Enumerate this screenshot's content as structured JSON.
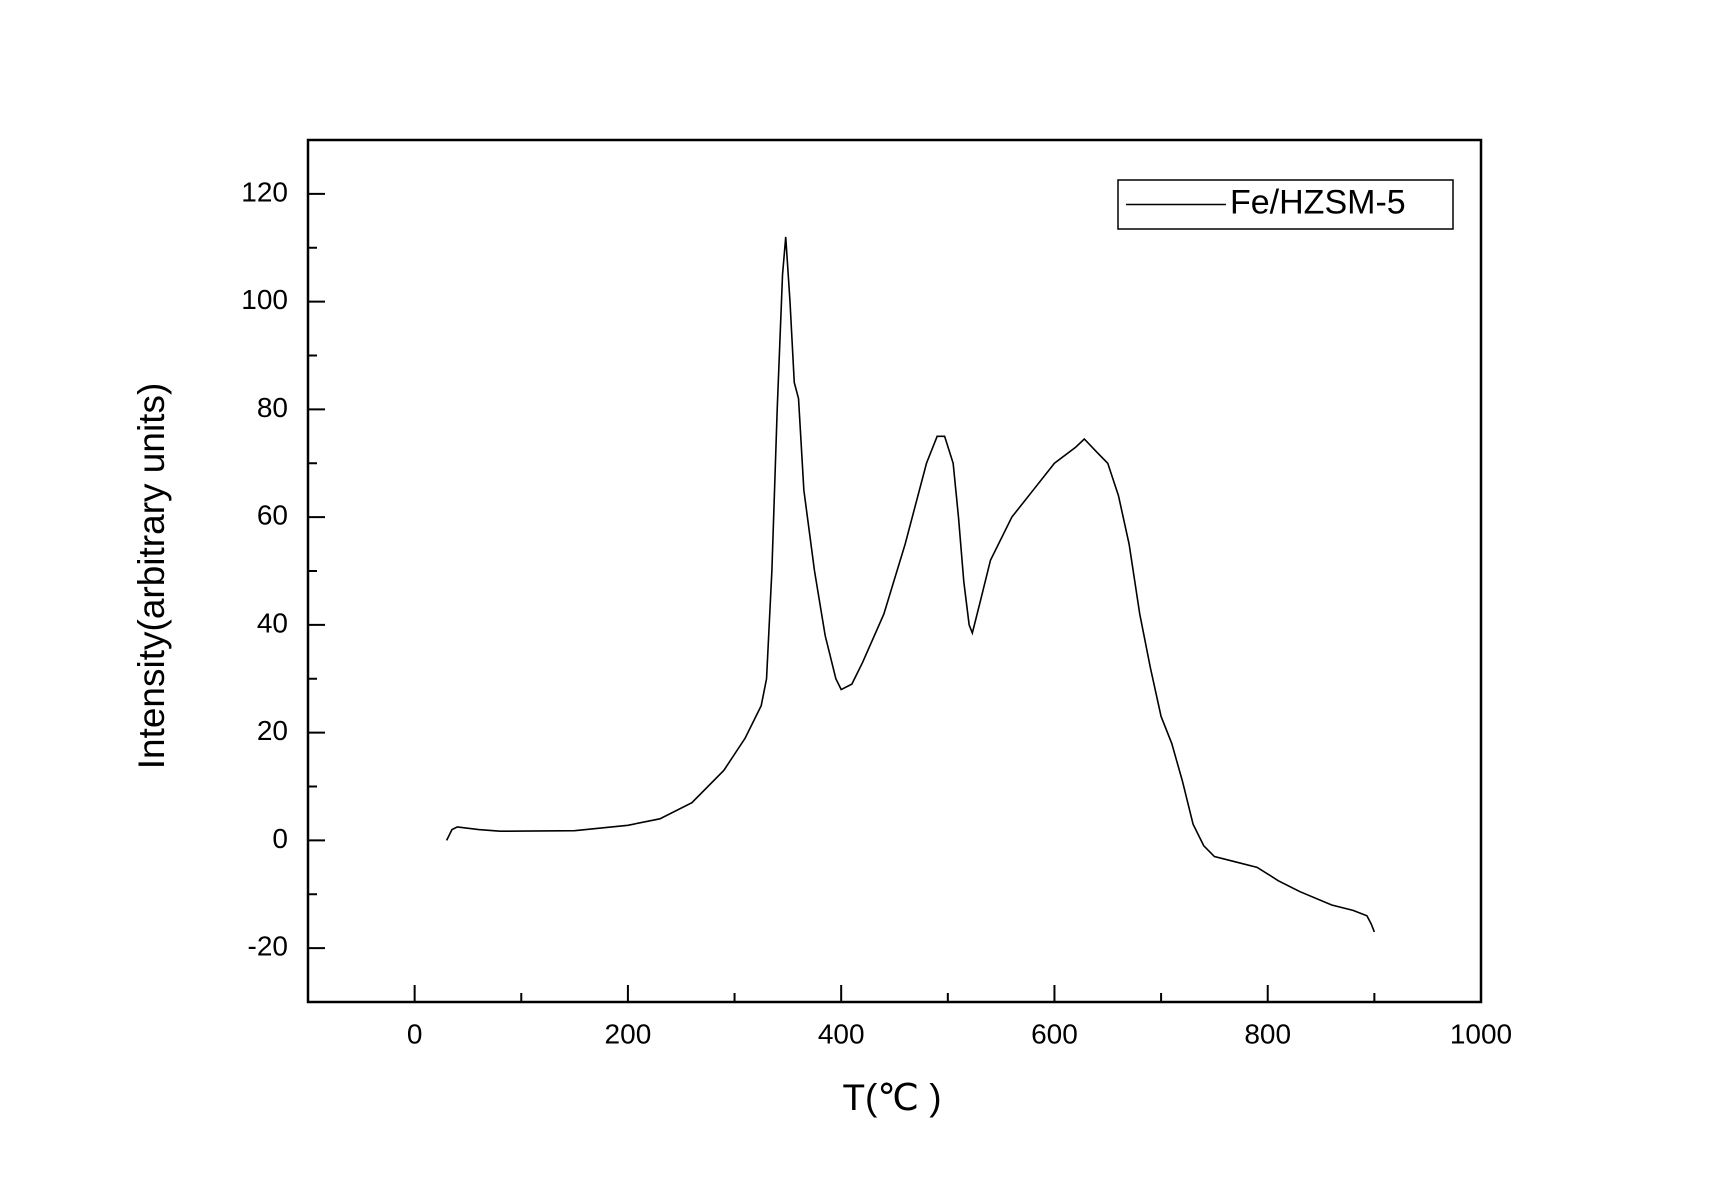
{
  "chart_data": {
    "type": "line",
    "x_label": "T(℃ )",
    "y_label": "Intensity(arbitrary units)",
    "x": [
      30,
      35,
      40,
      60,
      80,
      150,
      200,
      230,
      260,
      290,
      310,
      325,
      330,
      335,
      340,
      345,
      348,
      352,
      356,
      360,
      365,
      375,
      385,
      395,
      400,
      410,
      420,
      440,
      460,
      480,
      490,
      497,
      505,
      510,
      515,
      520,
      523,
      530,
      540,
      560,
      580,
      600,
      620,
      628,
      640,
      650,
      660,
      670,
      680,
      690,
      700,
      710,
      720,
      730,
      740,
      750,
      770,
      790,
      810,
      830,
      860,
      880,
      893,
      897,
      900
    ],
    "series": [
      {
        "name": "Fe/HZSM-5",
        "color": "#000000",
        "values": [
          0,
          2,
          2.5,
          2,
          1.7,
          1.8,
          2.8,
          4,
          7,
          13,
          19,
          25,
          30,
          50,
          80,
          105,
          112,
          100,
          85,
          82,
          65,
          50,
          38,
          30,
          28,
          29,
          33,
          42,
          55,
          70,
          75,
          75,
          70,
          60,
          48,
          40,
          38.5,
          44,
          52,
          60,
          65,
          70,
          73,
          74.5,
          72,
          70,
          64,
          55,
          42,
          32,
          23,
          18,
          11,
          3,
          -1,
          -3,
          -4,
          -5,
          -7.5,
          -9.5,
          -12,
          -13,
          -14,
          -15.5,
          -17
        ]
      }
    ],
    "xlim": [
      -100,
      1000
    ],
    "xticks": [
      0,
      200,
      400,
      600,
      800,
      1000
    ],
    "ylim": [
      -30,
      130
    ],
    "yticks": [
      -20,
      0,
      20,
      40,
      60,
      80,
      100,
      120
    ],
    "legend": "top-right",
    "grid": false
  }
}
